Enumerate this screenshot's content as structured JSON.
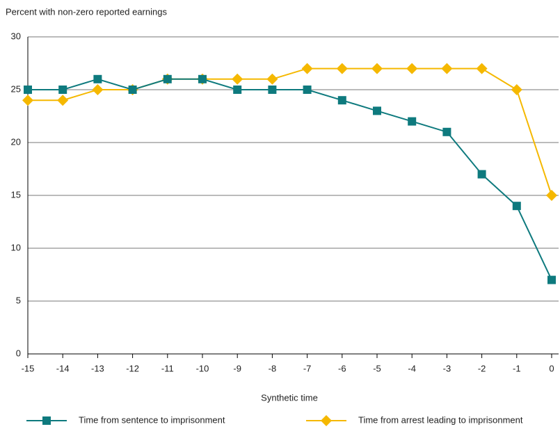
{
  "chart_data": {
    "type": "line",
    "y_axis_label": "Percent with non-zero reported earnings",
    "x_axis_label": "Synthetic time",
    "x": [
      -15,
      -14,
      -13,
      -12,
      -11,
      -10,
      -9,
      -8,
      -7,
      -6,
      -5,
      -4,
      -3,
      -2,
      -1,
      0
    ],
    "series": [
      {
        "name": "Time from sentence to imprisonment",
        "color": "#0e7a7e",
        "marker": "square",
        "values": [
          25,
          25,
          26,
          25,
          26,
          26,
          25,
          25,
          25,
          24,
          23,
          22,
          21,
          17,
          14,
          7
        ]
      },
      {
        "name": "Time from arrest leading to imprisonment",
        "color": "#f5b800",
        "marker": "diamond",
        "values": [
          24,
          24,
          25,
          25,
          26,
          26,
          26,
          26,
          27,
          27,
          27,
          27,
          27,
          27,
          25,
          15
        ]
      }
    ],
    "xlim": [
      -15,
      0
    ],
    "xticks": [
      -15,
      -14,
      -13,
      -12,
      -11,
      -10,
      -9,
      -8,
      -7,
      -6,
      -5,
      -4,
      -3,
      -2,
      -1,
      0
    ],
    "ylim": [
      0,
      30
    ],
    "yticks": [
      0,
      5,
      10,
      15,
      20,
      25,
      30
    ],
    "grid": true
  }
}
